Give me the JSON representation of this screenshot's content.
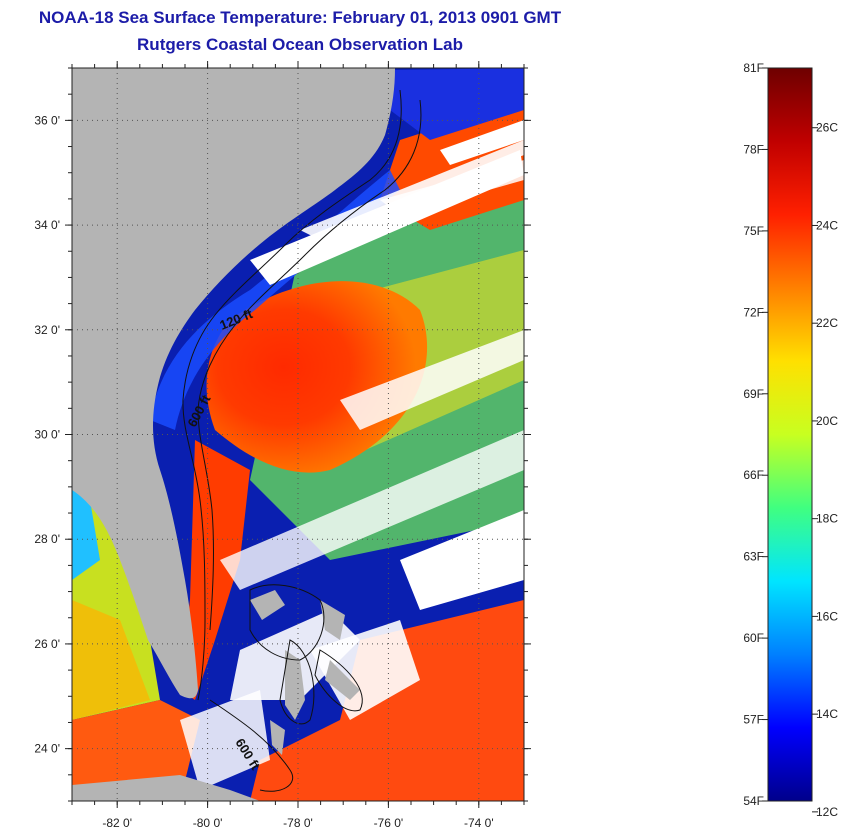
{
  "title": {
    "line1": "NOAA-18 Sea Surface Temperature:  February 01, 2013 0901 GMT",
    "line2": "Rutgers Coastal Ocean Observation Lab"
  },
  "map": {
    "lon_range": [
      -83,
      -73
    ],
    "lat_range": [
      23,
      37
    ],
    "lon_ticks": [
      {
        "value": -82,
        "label": "-82 0'"
      },
      {
        "value": -80,
        "label": "-80 0'"
      },
      {
        "value": -78,
        "label": "-78 0'"
      },
      {
        "value": -76,
        "label": "-76 0'"
      },
      {
        "value": -74,
        "label": "-74 0'"
      }
    ],
    "lat_ticks": [
      {
        "value": 24,
        "label": "24 0'"
      },
      {
        "value": 26,
        "label": "26 0'"
      },
      {
        "value": 28,
        "label": "28 0'"
      },
      {
        "value": 30,
        "label": "30 0'"
      },
      {
        "value": 32,
        "label": "32 0'"
      },
      {
        "value": 34,
        "label": "34 0'"
      },
      {
        "value": 36,
        "label": "36 0'"
      }
    ],
    "contour_labels": [
      "120 ft",
      "600 ft",
      "600 ft"
    ],
    "land_color": "#b4b4b4",
    "cloud_color": "#ffffff"
  },
  "colorbar": {
    "fahrenheit_labels": [
      {
        "value": 54,
        "label": "54F"
      },
      {
        "value": 57,
        "label": "57F"
      },
      {
        "value": 60,
        "label": "60F"
      },
      {
        "value": 63,
        "label": "63F"
      },
      {
        "value": 66,
        "label": "66F"
      },
      {
        "value": 69,
        "label": "69F"
      },
      {
        "value": 72,
        "label": "72F"
      },
      {
        "value": 75,
        "label": "75F"
      },
      {
        "value": 78,
        "label": "78F"
      },
      {
        "value": 81,
        "label": "81F"
      }
    ],
    "celsius_labels": [
      {
        "value": 12,
        "label": "12C"
      },
      {
        "value": 14,
        "label": "14C"
      },
      {
        "value": 16,
        "label": "16C"
      },
      {
        "value": 18,
        "label": "18C"
      },
      {
        "value": 20,
        "label": "20C"
      },
      {
        "value": 22,
        "label": "22C"
      },
      {
        "value": 24,
        "label": "24C"
      },
      {
        "value": 26,
        "label": "26C"
      }
    ],
    "colors": [
      "#00008b",
      "#0000ff",
      "#0080ff",
      "#00e5ff",
      "#40ff80",
      "#c8ff20",
      "#ffe000",
      "#ff8000",
      "#ff2000",
      "#c00000",
      "#6e0000"
    ]
  }
}
